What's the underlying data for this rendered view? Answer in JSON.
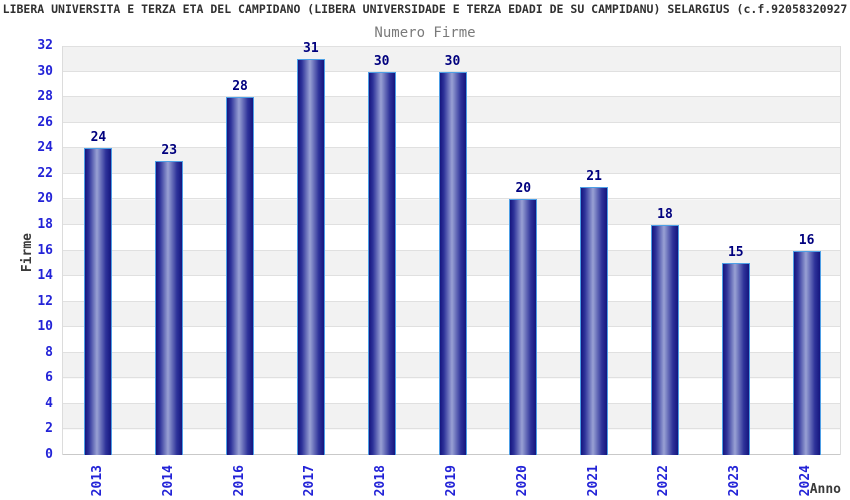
{
  "header": {
    "title": "LIBERA UNIVERSITA E TERZA ETA DEL CAMPIDANO (LIBERA UNIVERSIDADE E TERZA EDADI DE SU CAMPIDANU) SELARGIUS (c.f.92058320927",
    "subtitle": "Numero Firme"
  },
  "chart_data": {
    "type": "bar",
    "title": "Numero Firme",
    "categories": [
      "2013",
      "2014",
      "2016",
      "2017",
      "2018",
      "2019",
      "2020",
      "2021",
      "2022",
      "2023",
      "2024"
    ],
    "values": [
      24,
      23,
      28,
      31,
      30,
      30,
      20,
      21,
      18,
      15,
      16
    ],
    "xlabel": "Anno",
    "ylabel": "Firme",
    "ylim": [
      0,
      32
    ],
    "ytick_step": 2,
    "grid": true,
    "legend": "none",
    "band_colors": [
      "#f2f2f2",
      "#ffffff"
    ],
    "gridline_color": "#e0e0e0",
    "bar_border_color": "#4d9fe6",
    "bar_edge_color": "#15157e",
    "bar_highlight_color": "#99a1d4",
    "value_label_color": "#00007e",
    "tick_label_color": "#2323d7",
    "axis_title_color": "#3a3a3a"
  }
}
